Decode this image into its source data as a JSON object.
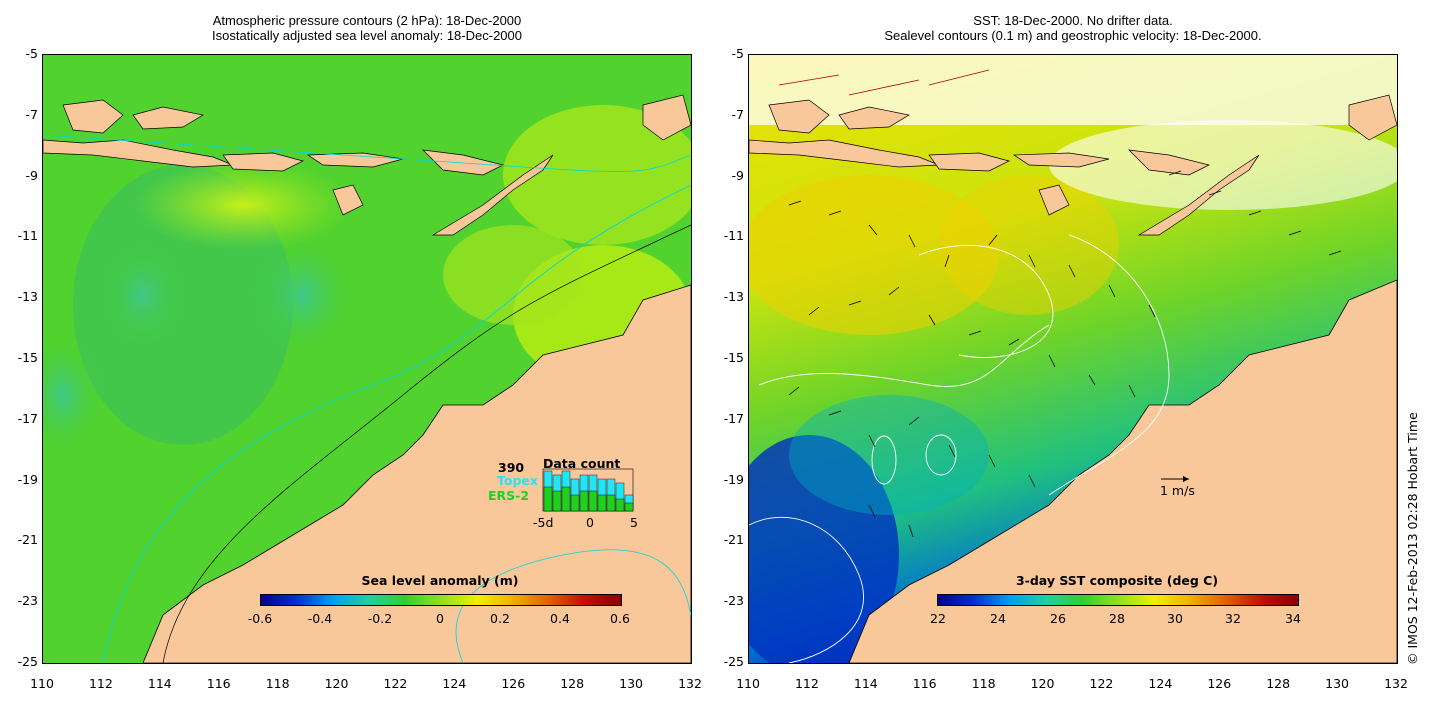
{
  "left_panel": {
    "title_line1": "Atmospheric pressure contours (2 hPa): 18-Dec-2000",
    "title_line2": "Isostatically adjusted sea level anomaly: 18-Dec-2000",
    "colorbar": {
      "label": "Sea level anomaly (m)",
      "ticks": [
        "-0.6",
        "-0.4",
        "-0.2",
        "0",
        "0.2",
        "0.4",
        "0.6"
      ]
    },
    "inset": {
      "title": "Data count",
      "max_count": "390",
      "series1": "Topex",
      "series2": "ERS-2",
      "x_ticks": [
        "-5d",
        "0",
        "5"
      ],
      "series1_color": "#22e5f5",
      "series2_color": "#20d020"
    }
  },
  "right_panel": {
    "title_line1": "SST: 18-Dec-2000. No drifter data.",
    "title_line2": "Sealevel contours (0.1 m) and geostrophic velocity: 18-Dec-2000.",
    "colorbar": {
      "label": "3-day SST composite (deg C)",
      "ticks": [
        "22",
        "24",
        "26",
        "28",
        "30",
        "32",
        "34"
      ]
    },
    "scale_label": "1 m/s"
  },
  "axes": {
    "y_ticks": [
      "-5",
      "-7",
      "-9",
      "-11",
      "-13",
      "-15",
      "-17",
      "-19",
      "-21",
      "-23",
      "-25"
    ],
    "x_ticks": [
      "110",
      "112",
      "114",
      "116",
      "118",
      "120",
      "122",
      "124",
      "126",
      "128",
      "130",
      "132"
    ]
  },
  "credit": "© IMOS 12-Feb-2013 02:28 Hobart Time",
  "colors": {
    "land": "#f8c79a",
    "ocean_green": "#4fd22b",
    "coast_contour": "#00d8e0"
  }
}
